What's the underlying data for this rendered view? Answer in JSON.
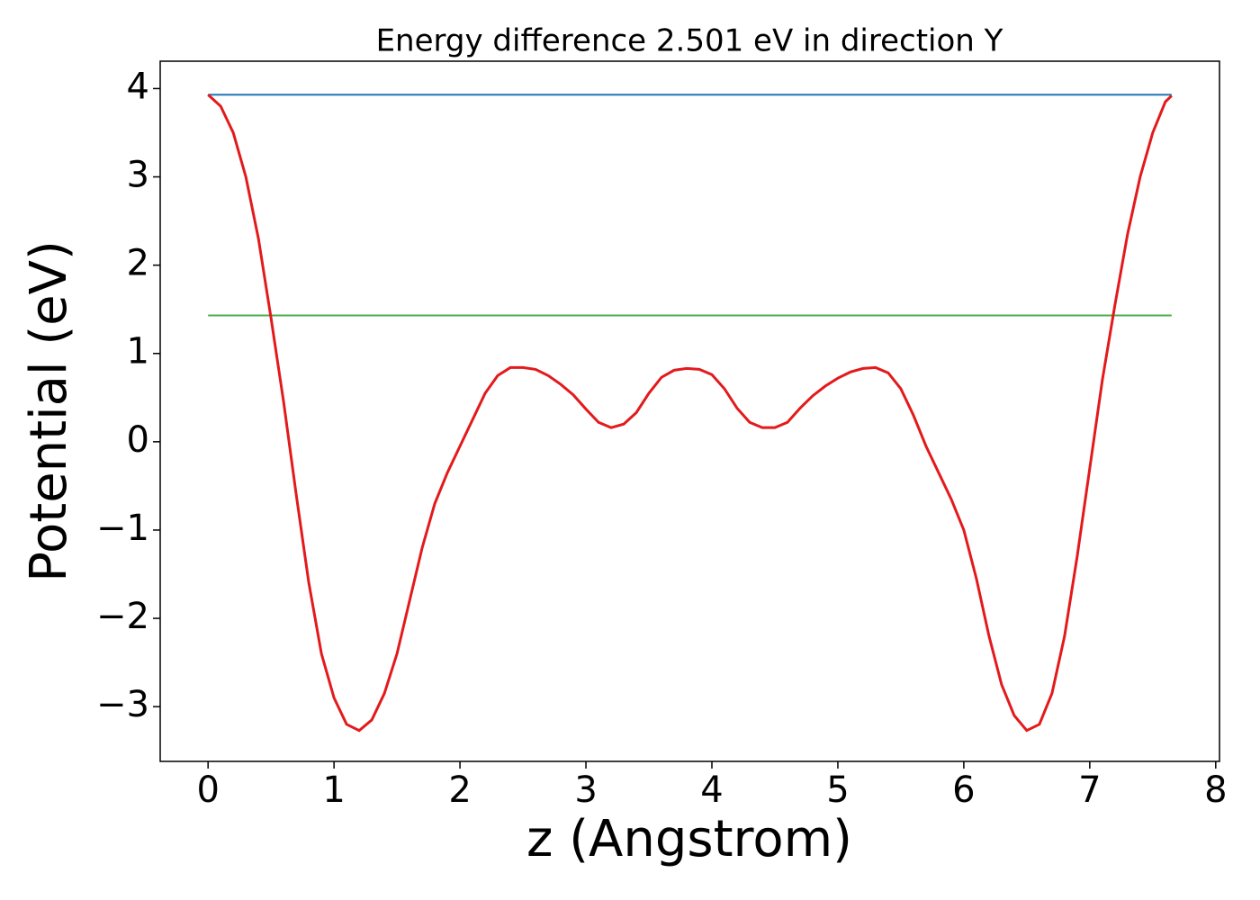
{
  "chart_data": {
    "type": "line",
    "title": "Energy difference 2.501 eV in direction Y",
    "xlabel": "z (Angstrom)",
    "ylabel": "Potential (eV)",
    "xlim": [
      -0.38,
      8.03
    ],
    "ylim": [
      -3.62,
      4.31
    ],
    "xticks": [
      0,
      1,
      2,
      3,
      4,
      5,
      6,
      7,
      8
    ],
    "yticks": [
      {
        "value": -3,
        "label": "−3"
      },
      {
        "value": -2,
        "label": "−2"
      },
      {
        "value": -1,
        "label": "−1"
      },
      0,
      1,
      2,
      3,
      4
    ],
    "series": [
      {
        "color": "#e31a1c",
        "x": [
          0,
          0.1,
          0.2,
          0.3,
          0.4,
          0.5,
          0.6,
          0.7,
          0.8,
          0.9,
          1.0,
          1.1,
          1.2,
          1.3,
          1.4,
          1.5,
          1.6,
          1.7,
          1.8,
          1.9,
          2.0,
          2.1,
          2.2,
          2.3,
          2.4,
          2.5,
          2.6,
          2.7,
          2.8,
          2.9,
          3.0,
          3.1,
          3.2,
          3.3,
          3.4,
          3.5,
          3.6,
          3.7,
          3.8,
          3.9,
          4.0,
          4.1,
          4.2,
          4.3,
          4.4,
          4.5,
          4.6,
          4.7,
          4.8,
          4.9,
          5.0,
          5.1,
          5.2,
          5.3,
          5.4,
          5.5,
          5.6,
          5.7,
          5.8,
          5.9,
          6.0,
          6.1,
          6.2,
          6.3,
          6.4,
          6.5,
          6.6,
          6.7,
          6.8,
          6.9,
          7.0,
          7.1,
          7.2,
          7.3,
          7.4,
          7.5,
          7.6,
          7.65
        ],
        "values": [
          3.93,
          3.8,
          3.5,
          3.0,
          2.3,
          1.4,
          0.45,
          -0.6,
          -1.6,
          -2.4,
          -2.9,
          -3.2,
          -3.27,
          -3.15,
          -2.85,
          -2.4,
          -1.8,
          -1.2,
          -0.7,
          -0.35,
          -0.05,
          0.25,
          0.55,
          0.75,
          0.84,
          0.84,
          0.82,
          0.75,
          0.65,
          0.53,
          0.37,
          0.22,
          0.16,
          0.2,
          0.33,
          0.55,
          0.73,
          0.81,
          0.83,
          0.82,
          0.76,
          0.6,
          0.38,
          0.22,
          0.16,
          0.16,
          0.22,
          0.38,
          0.52,
          0.63,
          0.72,
          0.79,
          0.83,
          0.84,
          0.78,
          0.6,
          0.3,
          -0.05,
          -0.35,
          -0.65,
          -1.0,
          -1.55,
          -2.2,
          -2.75,
          -3.1,
          -3.27,
          -3.2,
          -2.85,
          -2.2,
          -1.3,
          -0.3,
          0.7,
          1.55,
          2.35,
          3.0,
          3.5,
          3.85,
          3.92
        ]
      },
      {
        "color": "#1f77b4",
        "x": [
          0,
          7.65
        ],
        "values": [
          3.93,
          3.93
        ]
      },
      {
        "color": "#4daf4a",
        "x": [
          0,
          7.65
        ],
        "values": [
          1.43,
          1.43
        ]
      }
    ]
  }
}
